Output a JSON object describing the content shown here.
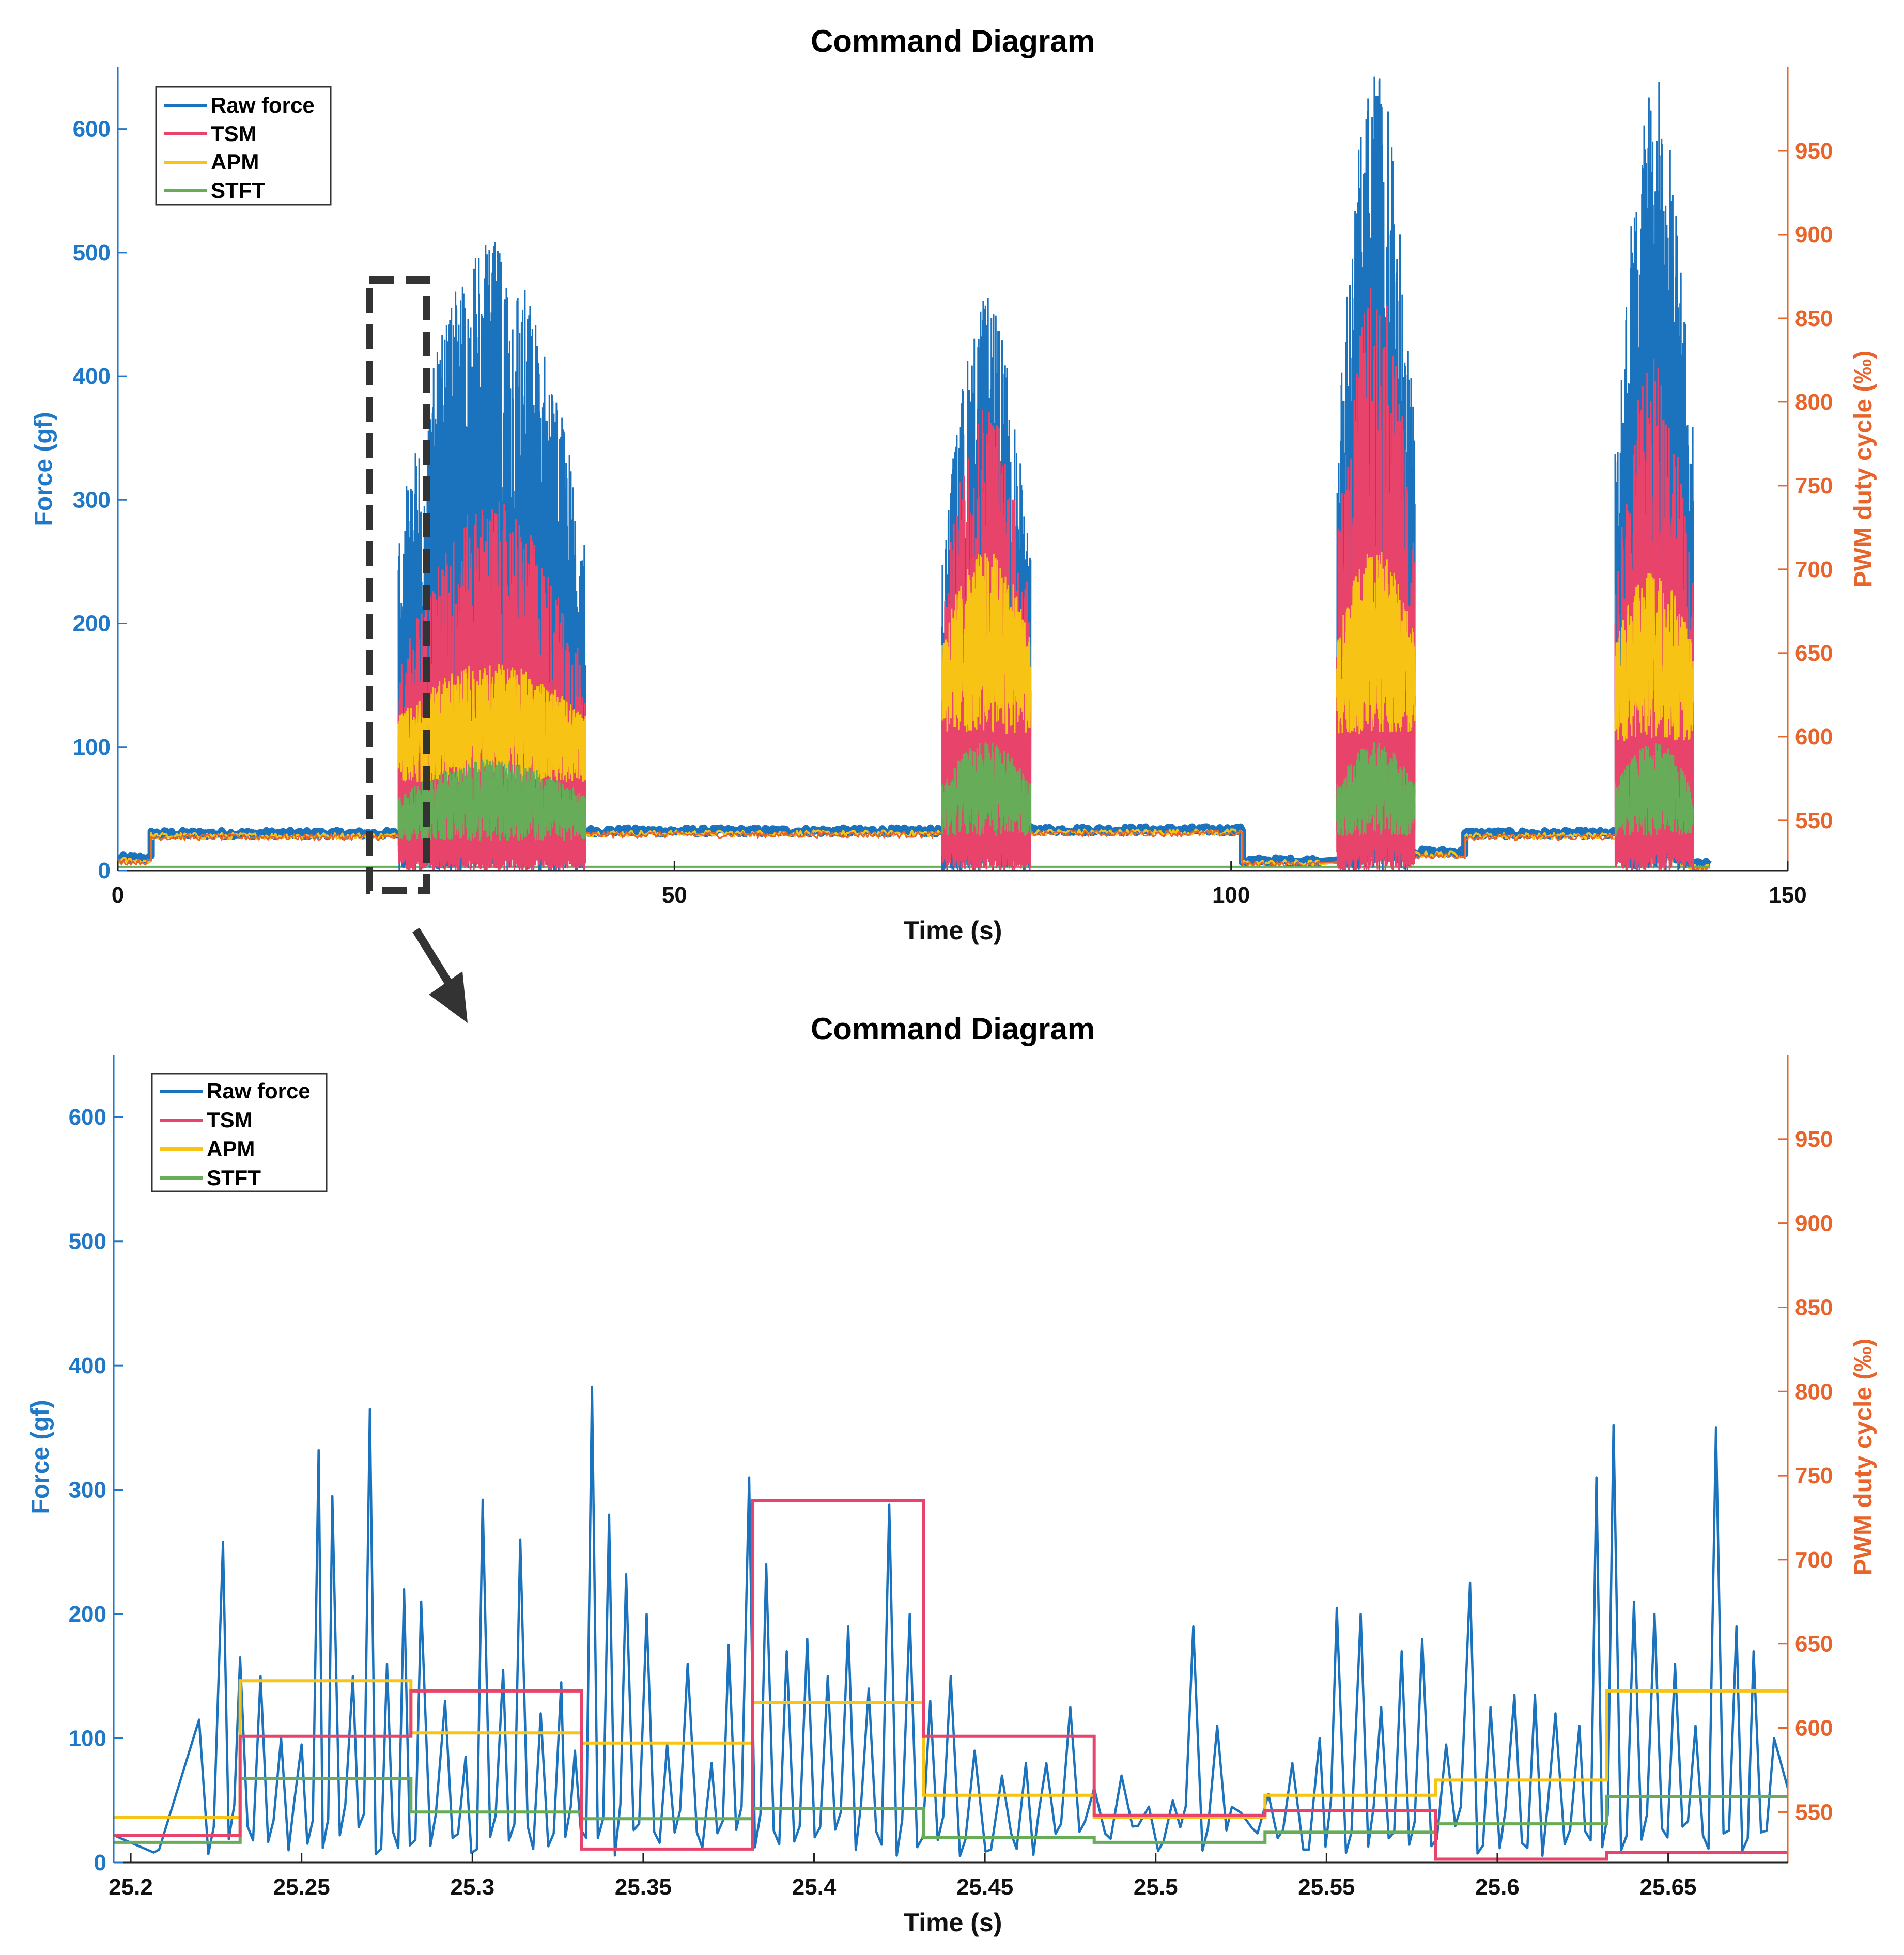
{
  "chart_data": [
    {
      "type": "line",
      "title": "Command Diagram",
      "xlabel": "Time (s)",
      "ylabel_left": "Force (gf)",
      "ylabel_right": "PWM duty cycle (‰)",
      "xlim": [
        0,
        150
      ],
      "ylim_left": [
        0,
        650
      ],
      "ylim_right": [
        520,
        1000
      ],
      "xticks": [
        0,
        50,
        100,
        150
      ],
      "xtick_labels": [
        "0",
        "50",
        "100",
        "150"
      ],
      "yticks_left": [
        0,
        100,
        200,
        300,
        400,
        500,
        600
      ],
      "ytick_labels_left": [
        "0",
        "100",
        "200",
        "300",
        "400",
        "500",
        "600"
      ],
      "yticks_right": [
        550,
        600,
        650,
        700,
        750,
        800,
        850,
        900,
        950
      ],
      "ytick_labels_right": [
        "550",
        "600",
        "650",
        "700",
        "750",
        "800",
        "850",
        "900",
        "950"
      ],
      "legend": [
        "Raw force",
        "TSM",
        "APM",
        "STFT"
      ],
      "legend_location": "top-left",
      "colors": {
        "raw": "#1b73be",
        "tsm": "#e8436a",
        "apm": "#f7c314",
        "stft": "#67ac58",
        "axis_left": "#1f78c8",
        "axis_right": "#e8642a"
      },
      "zoom_box_x": [
        22.5,
        27.5
      ],
      "bursts": [
        {
          "start": 25.2,
          "end": 42.0,
          "raw_peak": 510,
          "tsm_peak": 300,
          "apm_level": 130,
          "stft_level": 60
        },
        {
          "start": 74.0,
          "end": 82.0,
          "raw_peak": 465,
          "tsm_peak": 385,
          "apm_level": 200,
          "stft_level": 70
        },
        {
          "start": 109.5,
          "end": 116.5,
          "raw_peak": 650,
          "tsm_peak": 480,
          "apm_level": 200,
          "stft_level": 70
        },
        {
          "start": 134.5,
          "end": 141.5,
          "raw_peak": 650,
          "tsm_peak": 420,
          "apm_level": 190,
          "stft_level": 70
        }
      ],
      "baseline_segments": [
        {
          "start": 0,
          "end": 3,
          "value": 10
        },
        {
          "start": 3,
          "end": 25,
          "value": 30
        },
        {
          "start": 42,
          "end": 74,
          "value": 32
        },
        {
          "start": 82,
          "end": 101,
          "value": 33
        },
        {
          "start": 101,
          "end": 108,
          "value": 8
        },
        {
          "start": 116.5,
          "end": 121,
          "value": 15
        },
        {
          "start": 121,
          "end": 134.5,
          "value": 30
        },
        {
          "start": 141.5,
          "end": 143,
          "value": 5
        }
      ]
    },
    {
      "type": "line",
      "title": "Command Diagram",
      "xlabel": "Time (s)",
      "ylabel_left": "Force (gf)",
      "ylabel_right": "PWM duty cycle (‰)",
      "xlim": [
        25.195,
        25.685
      ],
      "ylim_left": [
        0,
        650
      ],
      "ylim_right": [
        520,
        1000
      ],
      "xticks": [
        25.2,
        25.25,
        25.3,
        25.35,
        25.4,
        25.45,
        25.5,
        25.55,
        25.6,
        25.65
      ],
      "xtick_labels": [
        "25.2",
        "25.25",
        "25.3",
        "25.35",
        "25.4",
        "25.45",
        "25.5",
        "25.55",
        "25.6",
        "25.65"
      ],
      "yticks_left": [
        0,
        100,
        200,
        300,
        400,
        500,
        600
      ],
      "ytick_labels_left": [
        "0",
        "100",
        "200",
        "300",
        "400",
        "500",
        "600"
      ],
      "yticks_right": [
        550,
        600,
        650,
        700,
        750,
        800,
        850,
        900,
        950
      ],
      "ytick_labels_right": [
        "550",
        "600",
        "650",
        "700",
        "750",
        "800",
        "850",
        "900",
        "950"
      ],
      "legend": [
        "Raw force",
        "TSM",
        "APM",
        "STFT"
      ],
      "legend_location": "top-left",
      "step_edges": [
        25.195,
        25.232,
        25.282,
        25.332,
        25.382,
        25.432,
        25.482,
        25.532,
        25.582,
        25.632,
        25.685
      ],
      "series": [
        {
          "name": "TSM",
          "unit": "permille",
          "values": [
            536,
            595,
            622,
            528,
            735,
            595,
            548,
            551,
            522,
            526
          ]
        },
        {
          "name": "APM",
          "unit": "permille",
          "values": [
            547,
            628,
            597,
            591,
            615,
            560,
            547,
            560,
            569,
            622
          ]
        },
        {
          "name": "STFT",
          "unit": "permille",
          "values": [
            532,
            570,
            550,
            546,
            552,
            535,
            532,
            538,
            543,
            559
          ]
        },
        {
          "name": "Raw force",
          "unit": "gf",
          "peaks": [
            {
              "t": 25.22,
              "v": 115
            },
            {
              "t": 25.227,
              "v": 258
            },
            {
              "t": 25.232,
              "v": 165
            },
            {
              "t": 25.238,
              "v": 150
            },
            {
              "t": 25.244,
              "v": 100
            },
            {
              "t": 25.25,
              "v": 95
            },
            {
              "t": 25.255,
              "v": 332
            },
            {
              "t": 25.259,
              "v": 295
            },
            {
              "t": 25.265,
              "v": 150
            },
            {
              "t": 25.27,
              "v": 365
            },
            {
              "t": 25.275,
              "v": 160
            },
            {
              "t": 25.28,
              "v": 220
            },
            {
              "t": 25.285,
              "v": 210
            },
            {
              "t": 25.292,
              "v": 130
            },
            {
              "t": 25.298,
              "v": 85
            },
            {
              "t": 25.303,
              "v": 292
            },
            {
              "t": 25.309,
              "v": 155
            },
            {
              "t": 25.314,
              "v": 260
            },
            {
              "t": 25.32,
              "v": 120
            },
            {
              "t": 25.326,
              "v": 145
            },
            {
              "t": 25.33,
              "v": 90
            },
            {
              "t": 25.335,
              "v": 383
            },
            {
              "t": 25.34,
              "v": 280
            },
            {
              "t": 25.345,
              "v": 232
            },
            {
              "t": 25.351,
              "v": 200
            },
            {
              "t": 25.357,
              "v": 95
            },
            {
              "t": 25.363,
              "v": 160
            },
            {
              "t": 25.37,
              "v": 80
            },
            {
              "t": 25.375,
              "v": 175
            },
            {
              "t": 25.381,
              "v": 310
            },
            {
              "t": 25.386,
              "v": 240
            },
            {
              "t": 25.392,
              "v": 170
            },
            {
              "t": 25.398,
              "v": 180
            },
            {
              "t": 25.404,
              "v": 150
            },
            {
              "t": 25.41,
              "v": 190
            },
            {
              "t": 25.416,
              "v": 140
            },
            {
              "t": 25.422,
              "v": 288
            },
            {
              "t": 25.428,
              "v": 200
            },
            {
              "t": 25.434,
              "v": 130
            },
            {
              "t": 25.44,
              "v": 150
            },
            {
              "t": 25.447,
              "v": 90
            },
            {
              "t": 25.455,
              "v": 70
            },
            {
              "t": 25.462,
              "v": 80
            },
            {
              "t": 25.468,
              "v": 80
            },
            {
              "t": 25.475,
              "v": 125
            },
            {
              "t": 25.482,
              "v": 60
            },
            {
              "t": 25.49,
              "v": 70
            },
            {
              "t": 25.498,
              "v": 45
            },
            {
              "t": 25.505,
              "v": 50
            },
            {
              "t": 25.511,
              "v": 190
            },
            {
              "t": 25.518,
              "v": 110
            },
            {
              "t": 25.525,
              "v": 40
            },
            {
              "t": 25.533,
              "v": 55
            },
            {
              "t": 25.54,
              "v": 80
            },
            {
              "t": 25.548,
              "v": 100
            },
            {
              "t": 25.553,
              "v": 205
            },
            {
              "t": 25.56,
              "v": 200
            },
            {
              "t": 25.566,
              "v": 125
            },
            {
              "t": 25.572,
              "v": 170
            },
            {
              "t": 25.578,
              "v": 180
            },
            {
              "t": 25.585,
              "v": 95
            },
            {
              "t": 25.592,
              "v": 225
            },
            {
              "t": 25.598,
              "v": 125
            },
            {
              "t": 25.605,
              "v": 135
            },
            {
              "t": 25.611,
              "v": 135
            },
            {
              "t": 25.617,
              "v": 120
            },
            {
              "t": 25.624,
              "v": 110
            },
            {
              "t": 25.629,
              "v": 310
            },
            {
              "t": 25.634,
              "v": 352
            },
            {
              "t": 25.64,
              "v": 210
            },
            {
              "t": 25.646,
              "v": 200
            },
            {
              "t": 25.652,
              "v": 160
            },
            {
              "t": 25.658,
              "v": 110
            },
            {
              "t": 25.664,
              "v": 350
            },
            {
              "t": 25.67,
              "v": 190
            },
            {
              "t": 25.675,
              "v": 170
            },
            {
              "t": 25.681,
              "v": 100
            }
          ]
        }
      ]
    }
  ]
}
